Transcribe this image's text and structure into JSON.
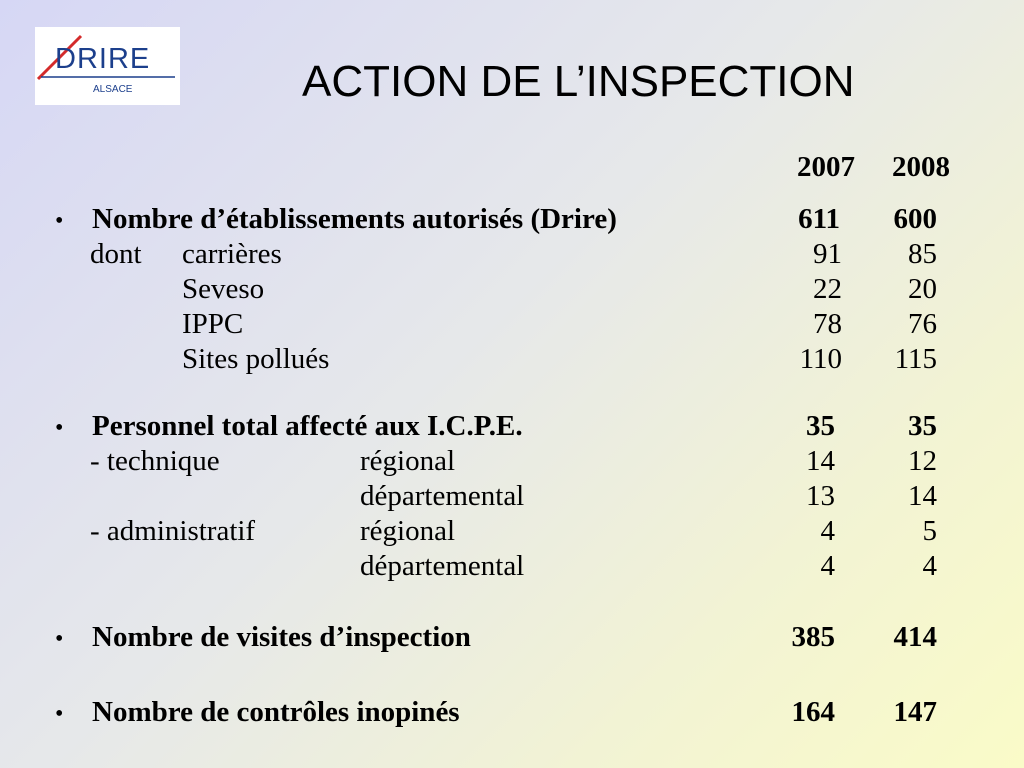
{
  "logo": {
    "name": "DRIRE",
    "region": "ALSACE",
    "colors": {
      "blue": "#1c3f8c",
      "red": "#d42a2a"
    }
  },
  "title": "ACTION DE L’INSPECTION",
  "years": [
    "2007",
    "2008"
  ],
  "bullet_glyph": "•",
  "sections": {
    "etablissements": {
      "label": "Nombre d’établissements autorisés (Drire)",
      "v2007": "611",
      "v2008": "600",
      "dont": "dont",
      "rows": [
        {
          "label": "carrières",
          "v2007": "91",
          "v2008": "85"
        },
        {
          "label": "Seveso",
          "v2007": "22",
          "v2008": "20"
        },
        {
          "label": "IPPC",
          "v2007": "78",
          "v2008": "76"
        },
        {
          "label": "Sites pollués",
          "v2007": "110",
          "v2008": "115"
        }
      ]
    },
    "personnel": {
      "label": "Personnel total affecté aux I.C.P.E.",
      "v2007": "35",
      "v2008": "35",
      "technique": "- technique",
      "administratif": "- administratif",
      "rows": [
        {
          "label": "régional",
          "v2007": "14",
          "v2008": "12"
        },
        {
          "label": "départemental",
          "v2007": "13",
          "v2008": "14"
        },
        {
          "label": "régional",
          "v2007": "4",
          "v2008": "5"
        },
        {
          "label": "départemental",
          "v2007": "4",
          "v2008": "4"
        }
      ]
    },
    "visites": {
      "label": "Nombre de visites d’inspection",
      "v2007": "385",
      "v2008": "414"
    },
    "controles": {
      "label": "Nombre de contrôles inopinés",
      "v2007": "164",
      "v2008": "147"
    }
  }
}
